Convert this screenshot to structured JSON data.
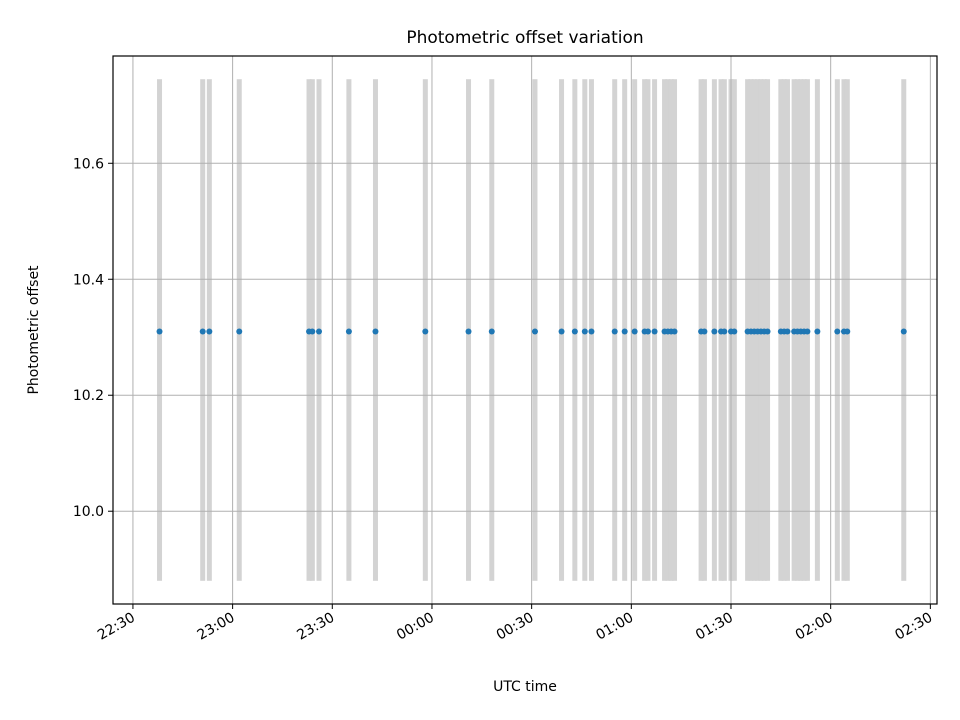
{
  "chart_data": {
    "type": "scatter",
    "title": "Photometric offset variation",
    "xlabel": "UTC time",
    "ylabel": "Photometric offset",
    "xlim": [
      "22:24",
      "02:32"
    ],
    "ylim": [
      9.84,
      10.785
    ],
    "x_ticks": [
      "22:30",
      "23:00",
      "23:30",
      "00:00",
      "00:30",
      "01:00",
      "01:30",
      "02:00",
      "02:30"
    ],
    "y_ticks": [
      10.0,
      10.2,
      10.4,
      10.6
    ],
    "y_tick_labels": [
      "10.0",
      "10.2",
      "10.4",
      "10.6"
    ],
    "grid": true,
    "marker_color": "#1f77b4",
    "band_color": "#d3d3d3",
    "band_y_range": [
      9.88,
      10.745
    ],
    "series": [
      {
        "x": [
          "22:38",
          "22:51",
          "22:53",
          "23:02",
          "23:23",
          "23:24",
          "23:26",
          "23:35",
          "23:43",
          "23:58",
          "00:11",
          "00:18",
          "00:31",
          "00:39",
          "00:43",
          "00:46",
          "00:48",
          "00:55",
          "00:58",
          "01:01",
          "01:04",
          "01:05",
          "01:07",
          "01:10",
          "01:11",
          "01:12",
          "01:13",
          "01:21",
          "01:22",
          "01:25",
          "01:27",
          "01:28",
          "01:30",
          "01:31",
          "01:35",
          "01:36",
          "01:37",
          "01:38",
          "01:39",
          "01:40",
          "01:41",
          "01:45",
          "01:46",
          "01:47",
          "01:49",
          "01:50",
          "01:51",
          "01:52",
          "01:53",
          "01:56",
          "02:02",
          "02:04",
          "02:05",
          "02:22"
        ],
        "y": [
          10.31,
          10.31,
          10.31,
          10.31,
          10.31,
          10.31,
          10.31,
          10.31,
          10.31,
          10.31,
          10.31,
          10.31,
          10.31,
          10.31,
          10.31,
          10.31,
          10.31,
          10.31,
          10.31,
          10.31,
          10.31,
          10.31,
          10.31,
          10.31,
          10.31,
          10.31,
          10.31,
          10.31,
          10.31,
          10.31,
          10.31,
          10.31,
          10.31,
          10.31,
          10.31,
          10.31,
          10.31,
          10.31,
          10.31,
          10.31,
          10.31,
          10.31,
          10.31,
          10.31,
          10.31,
          10.31,
          10.31,
          10.31,
          10.31,
          10.31,
          10.31,
          10.31,
          10.31,
          10.31
        ]
      }
    ]
  }
}
